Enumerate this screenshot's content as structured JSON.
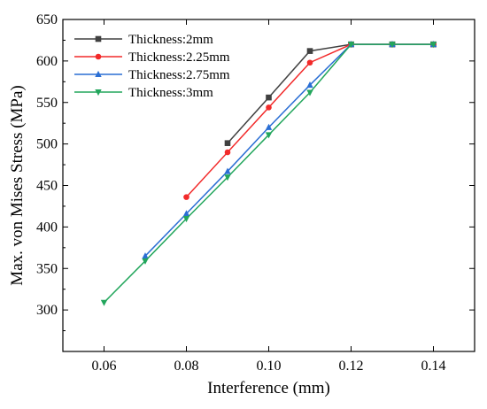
{
  "chart_data": {
    "type": "line",
    "title": "",
    "xlabel": "Interference (mm)",
    "ylabel": "Max. von Mises Stress (MPa)",
    "xlim": [
      0.05,
      0.15
    ],
    "ylim": [
      250,
      650
    ],
    "x_ticks": [
      "0.06",
      "0.08",
      "0.10",
      "0.12",
      "0.14"
    ],
    "y_ticks": [
      "300",
      "350",
      "400",
      "450",
      "500",
      "550",
      "600",
      "650"
    ],
    "grid": false,
    "legend_position": "top-left",
    "series": [
      {
        "name": "Thickness:2mm",
        "color": "#404040",
        "marker": "square",
        "x": [
          0.09,
          0.1,
          0.11,
          0.12,
          0.13,
          0.14
        ],
        "y": [
          501,
          556,
          612,
          620,
          620,
          620
        ]
      },
      {
        "name": "Thickness:2.25mm",
        "color": "#f22a2a",
        "marker": "circle",
        "x": [
          0.08,
          0.09,
          0.1,
          0.11,
          0.12,
          0.13,
          0.14
        ],
        "y": [
          436,
          490,
          544,
          598,
          620,
          620,
          620
        ]
      },
      {
        "name": "Thickness:2.75mm",
        "color": "#2a6ed4",
        "marker": "triangle-up",
        "x": [
          0.07,
          0.08,
          0.09,
          0.1,
          0.11,
          0.12,
          0.13,
          0.14
        ],
        "y": [
          365,
          416,
          467,
          520,
          571,
          620,
          620,
          620
        ]
      },
      {
        "name": "Thickness:3mm",
        "color": "#22a65c",
        "marker": "triangle-down",
        "x": [
          0.06,
          0.07,
          0.08,
          0.09,
          0.1,
          0.11,
          0.12,
          0.13,
          0.14
        ],
        "y": [
          309,
          359,
          410,
          460,
          511,
          562,
          620,
          620,
          620
        ]
      }
    ]
  }
}
